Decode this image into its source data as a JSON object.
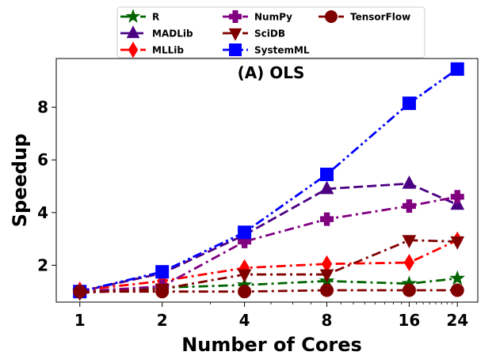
{
  "chart_data": {
    "type": "line",
    "title": "(A) OLS",
    "xlabel": "Number of Cores",
    "ylabel": "Speedup",
    "x_scale": "log2",
    "x": [
      1,
      2,
      4,
      8,
      16,
      24
    ],
    "x_tick_labels": [
      "1",
      "2",
      "4",
      "8",
      "16",
      "24"
    ],
    "xlim": [
      0.82,
      28.5
    ],
    "ylim": [
      0.6,
      9.85
    ],
    "y_ticks": [
      2,
      4,
      6,
      8
    ],
    "y_tick_labels": [
      "2",
      "4",
      "6",
      "8"
    ],
    "grid": false,
    "legend_position": "top, above plot, 3 columns",
    "series": [
      {
        "name": "R",
        "color": "#006400",
        "marker": "star",
        "dash": "dashdot",
        "values": [
          1.0,
          1.15,
          1.25,
          1.4,
          1.3,
          1.5
        ]
      },
      {
        "name": "MADLib",
        "color": "#4b0082",
        "marker": "triangle",
        "dash": "dashed",
        "values": [
          1.0,
          1.7,
          3.15,
          4.9,
          5.1,
          4.3
        ]
      },
      {
        "name": "MLLib",
        "color": "#ff0000",
        "marker": "diamond",
        "dash": "dashdot",
        "values": [
          1.05,
          1.4,
          1.9,
          2.05,
          2.1,
          2.95
        ]
      },
      {
        "name": "NumPy",
        "color": "#800080",
        "marker": "plus",
        "dash": "dashdot",
        "values": [
          1.0,
          1.2,
          2.9,
          3.75,
          4.25,
          4.6
        ]
      },
      {
        "name": "SciDB",
        "color": "#800000",
        "marker": "triangle-down",
        "dash": "dashdot",
        "values": [
          0.95,
          1.1,
          1.65,
          1.65,
          2.95,
          2.9
        ]
      },
      {
        "name": "SystemML",
        "color": "#0000ff",
        "marker": "square",
        "dash": "dashdotdot",
        "values": [
          1.0,
          1.75,
          3.25,
          5.45,
          8.15,
          9.45
        ]
      },
      {
        "name": "TensorFlow",
        "color": "#800000",
        "marker": "circle",
        "dash": "dashdot",
        "values": [
          1.0,
          1.0,
          1.0,
          1.05,
          1.05,
          1.05
        ]
      }
    ]
  }
}
